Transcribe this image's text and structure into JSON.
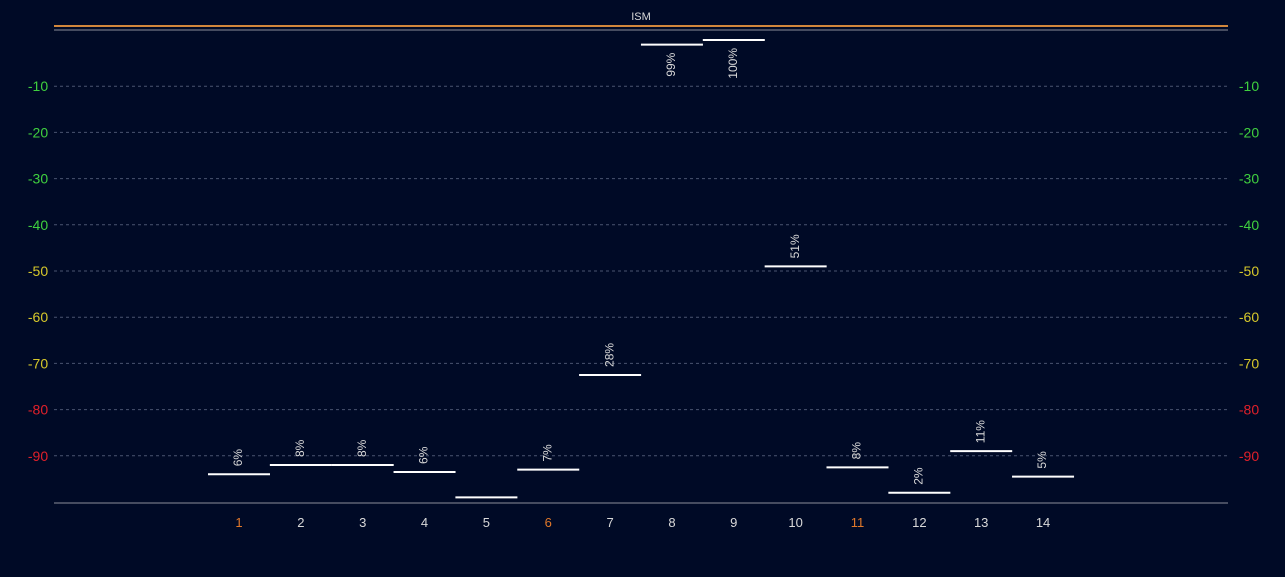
{
  "chart_data": {
    "type": "line",
    "title": "ISM",
    "xlabel": "",
    "ylabel": "",
    "ylim": [
      -100,
      0
    ],
    "yticks": [
      -10,
      -20,
      -30,
      -40,
      -50,
      -60,
      -70,
      -80,
      -90
    ],
    "y_tick_labels": [
      "-10",
      "-20",
      "-30",
      "-40",
      "-50",
      "-60",
      "-70",
      "-80",
      "-90"
    ],
    "grid": true,
    "categories": [
      "1",
      "2",
      "3",
      "4",
      "5",
      "6",
      "7",
      "8",
      "9",
      "10",
      "11",
      "12",
      "13",
      "14"
    ],
    "highlighted_categories": [
      "1",
      "6",
      "11"
    ],
    "series": [
      {
        "segments": [
          {
            "x": "1",
            "value": -94.0,
            "label": "6%"
          },
          {
            "x": "2",
            "value": -92.0,
            "label": "8%"
          },
          {
            "x": "3",
            "value": -92.0,
            "label": "8%"
          },
          {
            "x": "4",
            "value": -93.5,
            "label": "6%"
          },
          {
            "x": "5",
            "value": -99.0,
            "label": ""
          },
          {
            "x": "6",
            "value": -93.0,
            "label": "7%"
          },
          {
            "x": "7",
            "value": -72.5,
            "label": "28%"
          },
          {
            "x": "8",
            "value": -1.0,
            "label": "99%"
          },
          {
            "x": "9",
            "value": 0.0,
            "label": "100%"
          },
          {
            "x": "10",
            "value": -49.0,
            "label": "51%"
          },
          {
            "x": "11",
            "value": -92.5,
            "label": "8%"
          },
          {
            "x": "12",
            "value": -98.0,
            "label": "2%"
          },
          {
            "x": "13",
            "value": -89.0,
            "label": "11%"
          },
          {
            "x": "14",
            "value": -94.5,
            "label": "5%"
          }
        ]
      }
    ]
  },
  "colors": {
    "background": "#000a26",
    "title_line": "#d2873c",
    "title_line_secondary": "#8b8f99",
    "axis": "#8b8f99",
    "grid": "#4a5470",
    "segment": "#ffffff",
    "label": "#d9d9d9",
    "tick_green": "#3fd03f",
    "tick_yellow": "#d6c82b",
    "tick_red": "#e0202a",
    "x_tick": "#d9d9d9",
    "x_tick_highlight": "#e0782a"
  }
}
